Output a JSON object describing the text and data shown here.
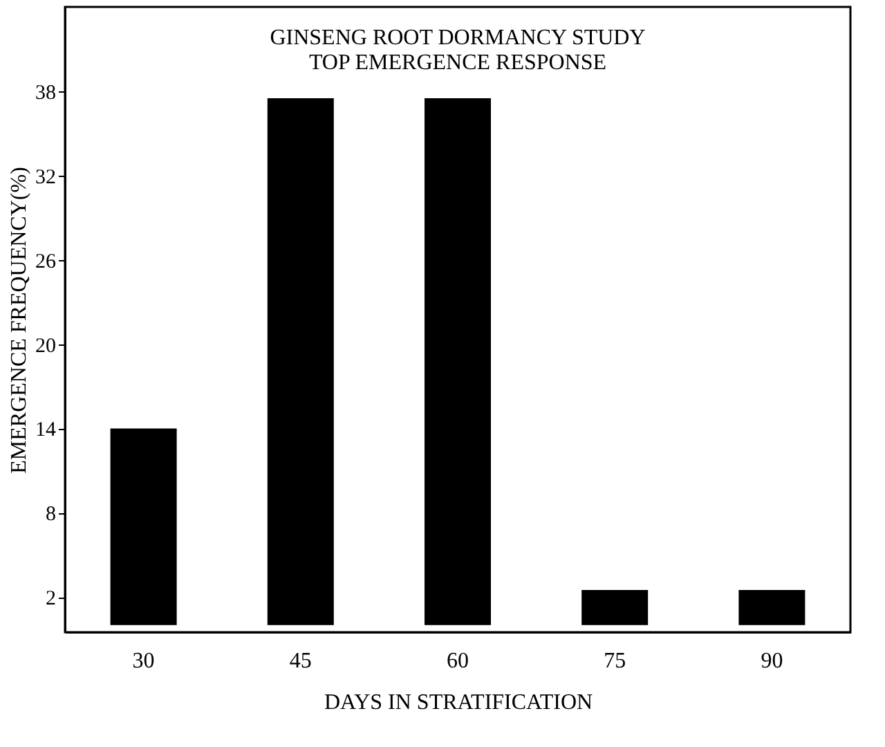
{
  "chart_data": {
    "type": "bar",
    "title": [
      "GINSENG ROOT DORMANCY STUDY",
      "TOP EMERGENCE RESPONSE"
    ],
    "xlabel": "DAYS IN STRATIFICATION",
    "ylabel": "EMERGENCE FREQUENCY(%)",
    "categories": [
      "30",
      "45",
      "60",
      "75",
      "90"
    ],
    "values": [
      14,
      37.5,
      37.5,
      2.5,
      2.5
    ],
    "color": "#000000",
    "ylim": [
      -0.5,
      44
    ],
    "yticks": [
      2,
      8,
      14,
      20,
      26,
      32,
      38
    ],
    "grid": false
  }
}
